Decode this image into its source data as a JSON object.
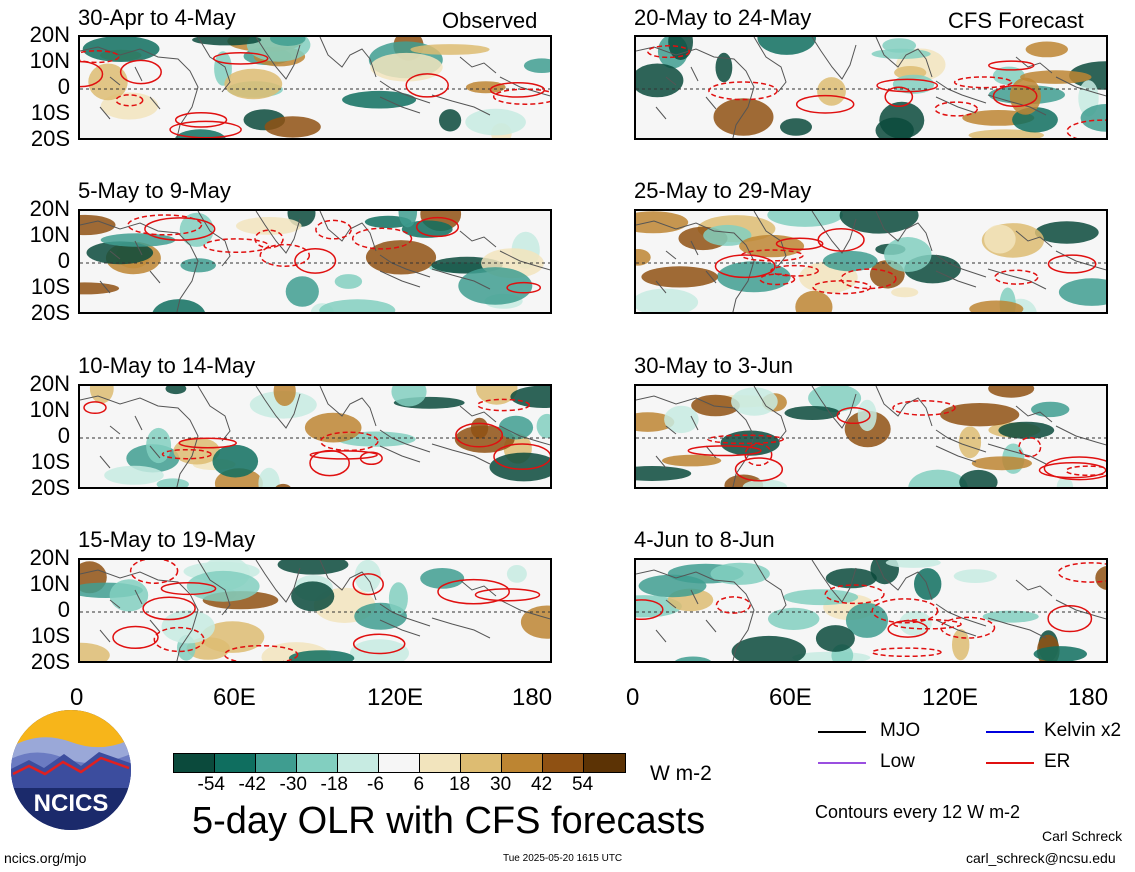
{
  "panels_left_tag": "Observed",
  "panels_right_tag": "CFS Forecast",
  "lat_labels": [
    "20N",
    "10N",
    "0",
    "10S",
    "20S"
  ],
  "lon_labels": [
    "0",
    "60E",
    "120E",
    "180"
  ],
  "panels": [
    {
      "title": "30-Apr to 4-May"
    },
    {
      "title": "5-May to 9-May"
    },
    {
      "title": "10-May to 14-May"
    },
    {
      "title": "15-May to 19-May"
    },
    {
      "title": "20-May to 24-May"
    },
    {
      "title": "25-May to 29-May"
    },
    {
      "title": "30-May to 3-Jun"
    },
    {
      "title": "4-Jun to 8-Jun"
    }
  ],
  "colorbar": {
    "colors": [
      "#0b4a3c",
      "#0f6e5f",
      "#3f9d90",
      "#82cfc0",
      "#c7ebe2",
      "#f6f6f6",
      "#f2e4bd",
      "#ddbc72",
      "#bd8532",
      "#8f5113",
      "#5c3305"
    ],
    "labels": [
      "-54",
      "-42",
      "-30",
      "-18",
      "-6",
      "6",
      "18",
      "30",
      "42",
      "54"
    ],
    "units": "W m-2"
  },
  "legend": {
    "mjo": "MJO",
    "kelvin": "Kelvin x2",
    "low": "Low",
    "er": "ER",
    "colors": {
      "mjo": "#000000",
      "kelvin": "#0000dd",
      "low": "#9a4fe0",
      "er": "#e01010"
    }
  },
  "contours_note": "Contours every 12 W m-2",
  "main_title": "5-day OLR with CFS forecasts",
  "logo_text": "NCICS",
  "url": "ncics.org/mjo",
  "timestamp": "Tue 2025-05-20 1615 UTC",
  "author": "Carl Schreck",
  "email": "carl_schreck@ncsu.edu"
}
